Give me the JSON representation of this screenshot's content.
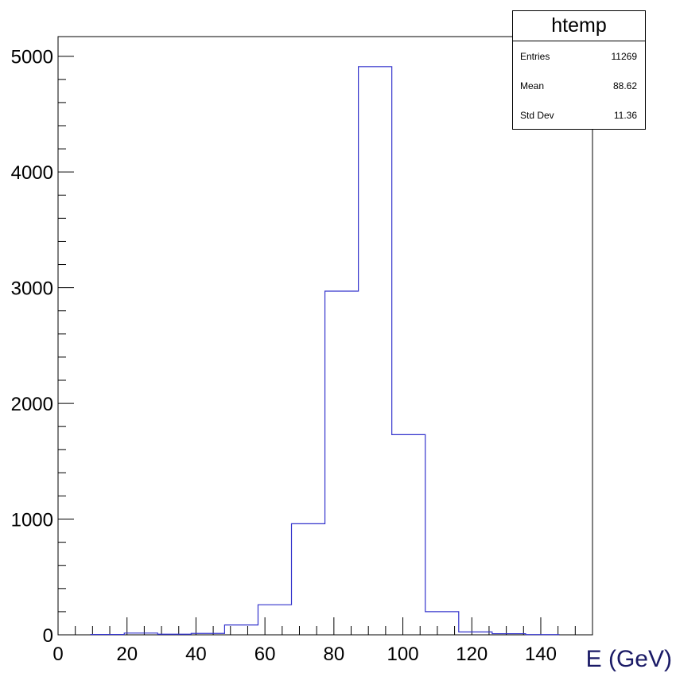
{
  "stats_box": {
    "title": "htemp",
    "rows": [
      {
        "label": "Entries",
        "value": "11269"
      },
      {
        "label": "Mean",
        "value": "88.62"
      },
      {
        "label": "Std Dev",
        "value": "11.36"
      }
    ]
  },
  "chart_data": {
    "type": "bar",
    "title": "",
    "xlabel": "E (GeV)",
    "ylabel": "",
    "xlim": [
      0,
      155
    ],
    "ylim": [
      0,
      5170
    ],
    "x_ticks": [
      0,
      20,
      40,
      60,
      80,
      100,
      120,
      140
    ],
    "y_ticks": [
      0,
      1000,
      2000,
      3000,
      4000,
      5000
    ],
    "x_tick_labels": [
      "0",
      "20",
      "40",
      "60",
      "80",
      "100",
      "120",
      "140"
    ],
    "y_tick_labels": [
      "0",
      "1000",
      "2000",
      "3000",
      "4000",
      "5000"
    ],
    "bin_edges": [
      9.5,
      19.2,
      28.9,
      38.6,
      48.3,
      58,
      67.7,
      77.4,
      87.1,
      96.8,
      106.5,
      116.2,
      125.9,
      135.6,
      145.3
    ],
    "values": [
      3,
      15,
      5,
      12,
      85,
      260,
      960,
      2970,
      4910,
      1730,
      200,
      25,
      10,
      2
    ],
    "line_color": "#3333cc",
    "grid": false,
    "legend": "none"
  }
}
